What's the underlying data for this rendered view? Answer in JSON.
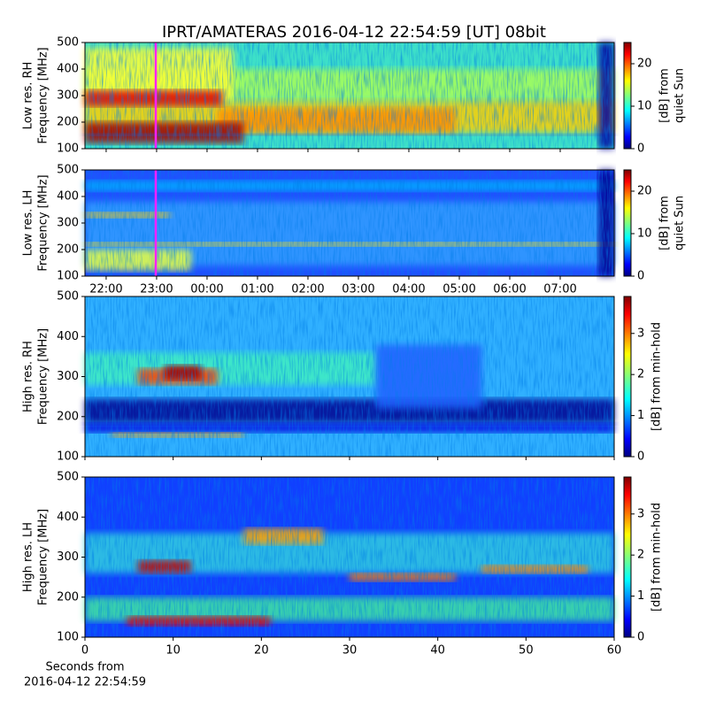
{
  "title": "IPRT/AMATERAS 2016-04-12 22:54:59 [UT]   08bit",
  "chart_data": [
    {
      "type": "heatmap",
      "ylabel": [
        "Low res. RH",
        "Frequency [MHz]"
      ],
      "ylim": [
        100,
        500
      ],
      "yticks": [
        100,
        200,
        300,
        400,
        500
      ],
      "sharex": 1,
      "colorbar": {
        "label": [
          "[dB] from",
          "quiet Sun"
        ],
        "lim": [
          0,
          25
        ],
        "ticks": [
          0,
          10,
          20
        ]
      }
    },
    {
      "type": "heatmap",
      "ylabel": [
        "Low res. LH",
        "Frequency [MHz]"
      ],
      "ylim": [
        100,
        500
      ],
      "yticks": [
        100,
        200,
        300,
        400,
        500
      ],
      "xlim": [
        21.58,
        32.07
      ],
      "xticks": [
        {
          "value": 22,
          "label": "22:00"
        },
        {
          "value": 23,
          "label": "23:00"
        },
        {
          "value": 24,
          "label": "00:00"
        },
        {
          "value": 25,
          "label": "01:00"
        },
        {
          "value": 26,
          "label": "02:00"
        },
        {
          "value": 27,
          "label": "03:00"
        },
        {
          "value": 28,
          "label": "04:00"
        },
        {
          "value": 29,
          "label": "05:00"
        },
        {
          "value": 30,
          "label": "06:00"
        },
        {
          "value": 31,
          "label": "07:00"
        }
      ],
      "colorbar": {
        "label": [
          "[dB] from",
          "quiet Sun"
        ],
        "lim": [
          0,
          25
        ],
        "ticks": [
          0,
          10,
          20
        ]
      }
    },
    {
      "type": "heatmap",
      "ylabel": [
        "High res. RH",
        "Frequency [MHz]"
      ],
      "ylim": [
        100,
        500
      ],
      "yticks": [
        100,
        200,
        300,
        400,
        500
      ],
      "sharex": 3,
      "colorbar": {
        "label": [
          "[dB] from min-hold"
        ],
        "lim": [
          0,
          3.9
        ],
        "ticks": [
          0,
          1,
          2,
          3
        ]
      }
    },
    {
      "type": "heatmap",
      "ylabel": [
        "High res. LH",
        "Frequency [MHz]"
      ],
      "ylim": [
        100,
        500
      ],
      "yticks": [
        100,
        200,
        300,
        400,
        500
      ],
      "xlim": [
        0,
        60
      ],
      "xticks": [
        0,
        10,
        20,
        30,
        40,
        50,
        60
      ],
      "xlabel": [
        "Seconds from",
        "2016-04-12 22:54:59"
      ],
      "colorbar": {
        "label": [
          "[dB] from min-hold"
        ],
        "lim": [
          0,
          3.9
        ],
        "ticks": [
          0,
          1,
          2,
          3
        ]
      }
    }
  ]
}
